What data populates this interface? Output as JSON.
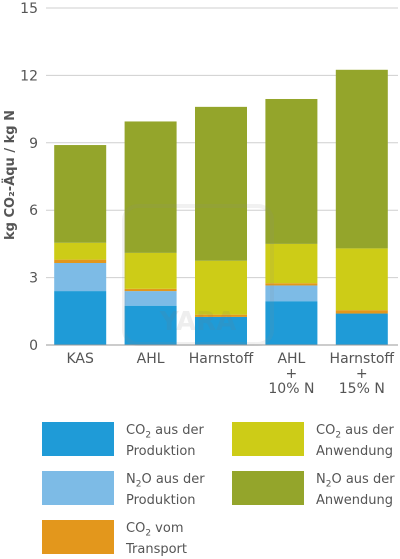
{
  "chart_data": {
    "type": "stacked-bar",
    "categories": [
      "KAS",
      "AHL",
      "Harnstoff",
      "AHL\n+\n10% N",
      "Harnstoff\n+\n15% N"
    ],
    "ylabel": "kg CO₂-Äqu / kg N",
    "ylim": [
      0,
      15
    ],
    "yticks": [
      0,
      3,
      6,
      9,
      12,
      15
    ],
    "grid": true,
    "legend_position": "bottom",
    "series": [
      {
        "name": "CO₂ aus der Produktion",
        "color": "#1f9bd7",
        "values": [
          2.4,
          1.75,
          1.25,
          1.95,
          1.4
        ]
      },
      {
        "name": "N₂O aus der Produktion",
        "color": "#7dbbe6",
        "values": [
          1.25,
          0.65,
          0.0,
          0.7,
          0.0
        ]
      },
      {
        "name": "CO₂ vom Transport",
        "color": "#e3971c",
        "values": [
          0.15,
          0.1,
          0.1,
          0.1,
          0.15
        ]
      },
      {
        "name": "CO₂ aus der Anwendung",
        "color": "#cdcc17",
        "values": [
          0.75,
          1.6,
          2.4,
          1.75,
          2.75
        ]
      },
      {
        "name": "N₂O aus der Anwendung",
        "color": "#94a52b",
        "values": [
          4.35,
          5.85,
          6.85,
          6.45,
          7.95
        ]
      }
    ]
  },
  "legend": {
    "col1": [
      {
        "line1": "CO",
        "sub": "2",
        "rest1": " aus der",
        "line2": "Produktion",
        "color": "#1f9bd7"
      },
      {
        "line1": "N",
        "sub": "2",
        "rest1": "O aus der",
        "line2": "Produktion",
        "color": "#7dbbe6"
      },
      {
        "line1": "CO",
        "sub": "2",
        "rest1": " vom",
        "line2": "Transport",
        "color": "#e3971c"
      }
    ],
    "col2": [
      {
        "line1": "CO",
        "sub": "2",
        "rest1": " aus der",
        "line2": "Anwendung",
        "color": "#cdcc17"
      },
      {
        "line1": "N",
        "sub": "2",
        "rest1": "O aus der",
        "line2": "Anwendung",
        "color": "#94a52b"
      }
    ]
  },
  "watermark_text": "YARA"
}
